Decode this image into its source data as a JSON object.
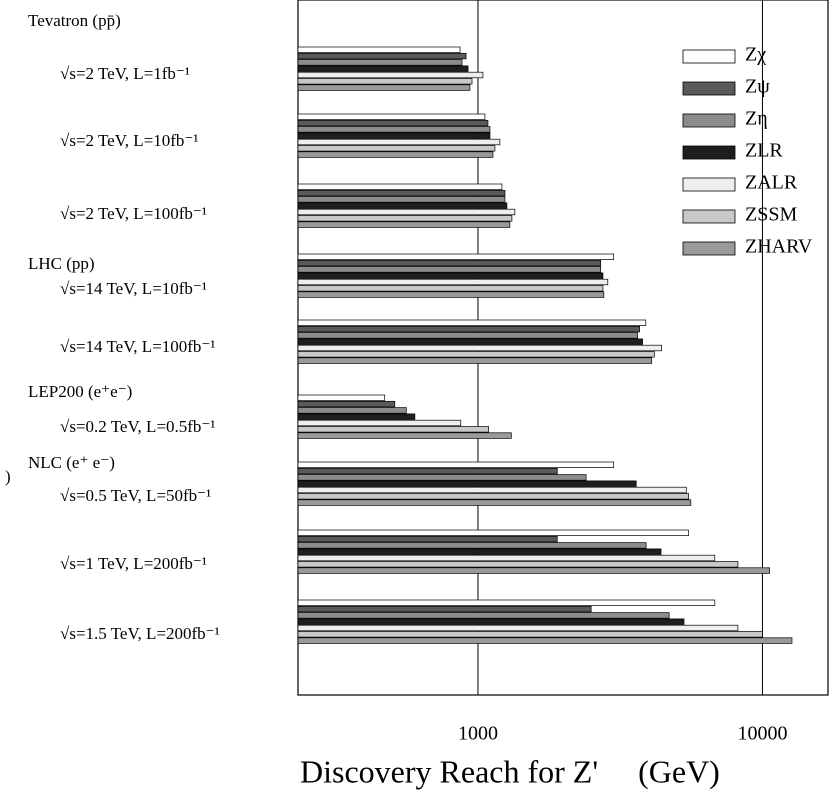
{
  "chart_data": {
    "type": "hbar-grouped",
    "x_label": "Discovery Reach for Z'     (GeV)",
    "margin_note": ")",
    "groups": [
      {
        "name": "Tevatron (pp̄)",
        "categories": [
          "√s=2 TeV, L=1fb⁻¹",
          "√s=2 TeV, L=10fb⁻¹",
          "√s=2 TeV, L=100fb⁻¹"
        ]
      },
      {
        "name": "LHC (pp)",
        "categories": [
          "√s=14 TeV, L=10fb⁻¹",
          "√s=14 TeV, L=100fb⁻¹"
        ]
      },
      {
        "name": "LEP200 (e⁺e⁻)",
        "categories": [
          "√s=0.2 TeV, L=0.5fb⁻¹"
        ]
      },
      {
        "name": "NLC  (e⁺ e⁻)",
        "categories": [
          "√s=0.5 TeV, L=50fb⁻¹",
          "√s=1 TeV, L=200fb⁻¹",
          "√s=1.5 TeV, L=200fb⁻¹"
        ]
      }
    ],
    "series": [
      {
        "name": "Zχ",
        "color": "#ffffff",
        "values": [
          865,
          1058,
          1214,
          3000,
          3890,
          470,
          3000,
          5500,
          6800
        ]
      },
      {
        "name": "Zψ",
        "color": "#5a5a5a",
        "values": [
          908,
          1084,
          1244,
          2700,
          3700,
          510,
          1900,
          1900,
          2500
        ]
      },
      {
        "name": "Zη",
        "color": "#8c8c8c",
        "values": [
          879,
          1102,
          1244,
          2700,
          3640,
          560,
          2400,
          3900,
          4700
        ]
      },
      {
        "name": "ZLR",
        "color": "#1e1e1e",
        "values": [
          923,
          1102,
          1264,
          2750,
          3790,
          600,
          3600,
          4400,
          5300
        ]
      },
      {
        "name": "ZALR",
        "color": "#eeeeee",
        "values": [
          1041,
          1194,
          1348,
          2860,
          4420,
          870,
          5400,
          6800,
          8200
        ]
      },
      {
        "name": "ZSSM",
        "color": "#c8c8c8",
        "values": [
          953,
          1147,
          1316,
          2750,
          4170,
          1090,
          5500,
          8200,
          10000
        ]
      },
      {
        "name": "ZHARV",
        "color": "#9a9a9a",
        "values": [
          937,
          1129,
          1295,
          2770,
          4080,
          1310,
          5600,
          10600,
          12700
        ]
      }
    ],
    "xscale": "log",
    "xlim": [
      233,
      17000
    ],
    "xticks": [
      1000,
      10000
    ],
    "grid": true
  }
}
